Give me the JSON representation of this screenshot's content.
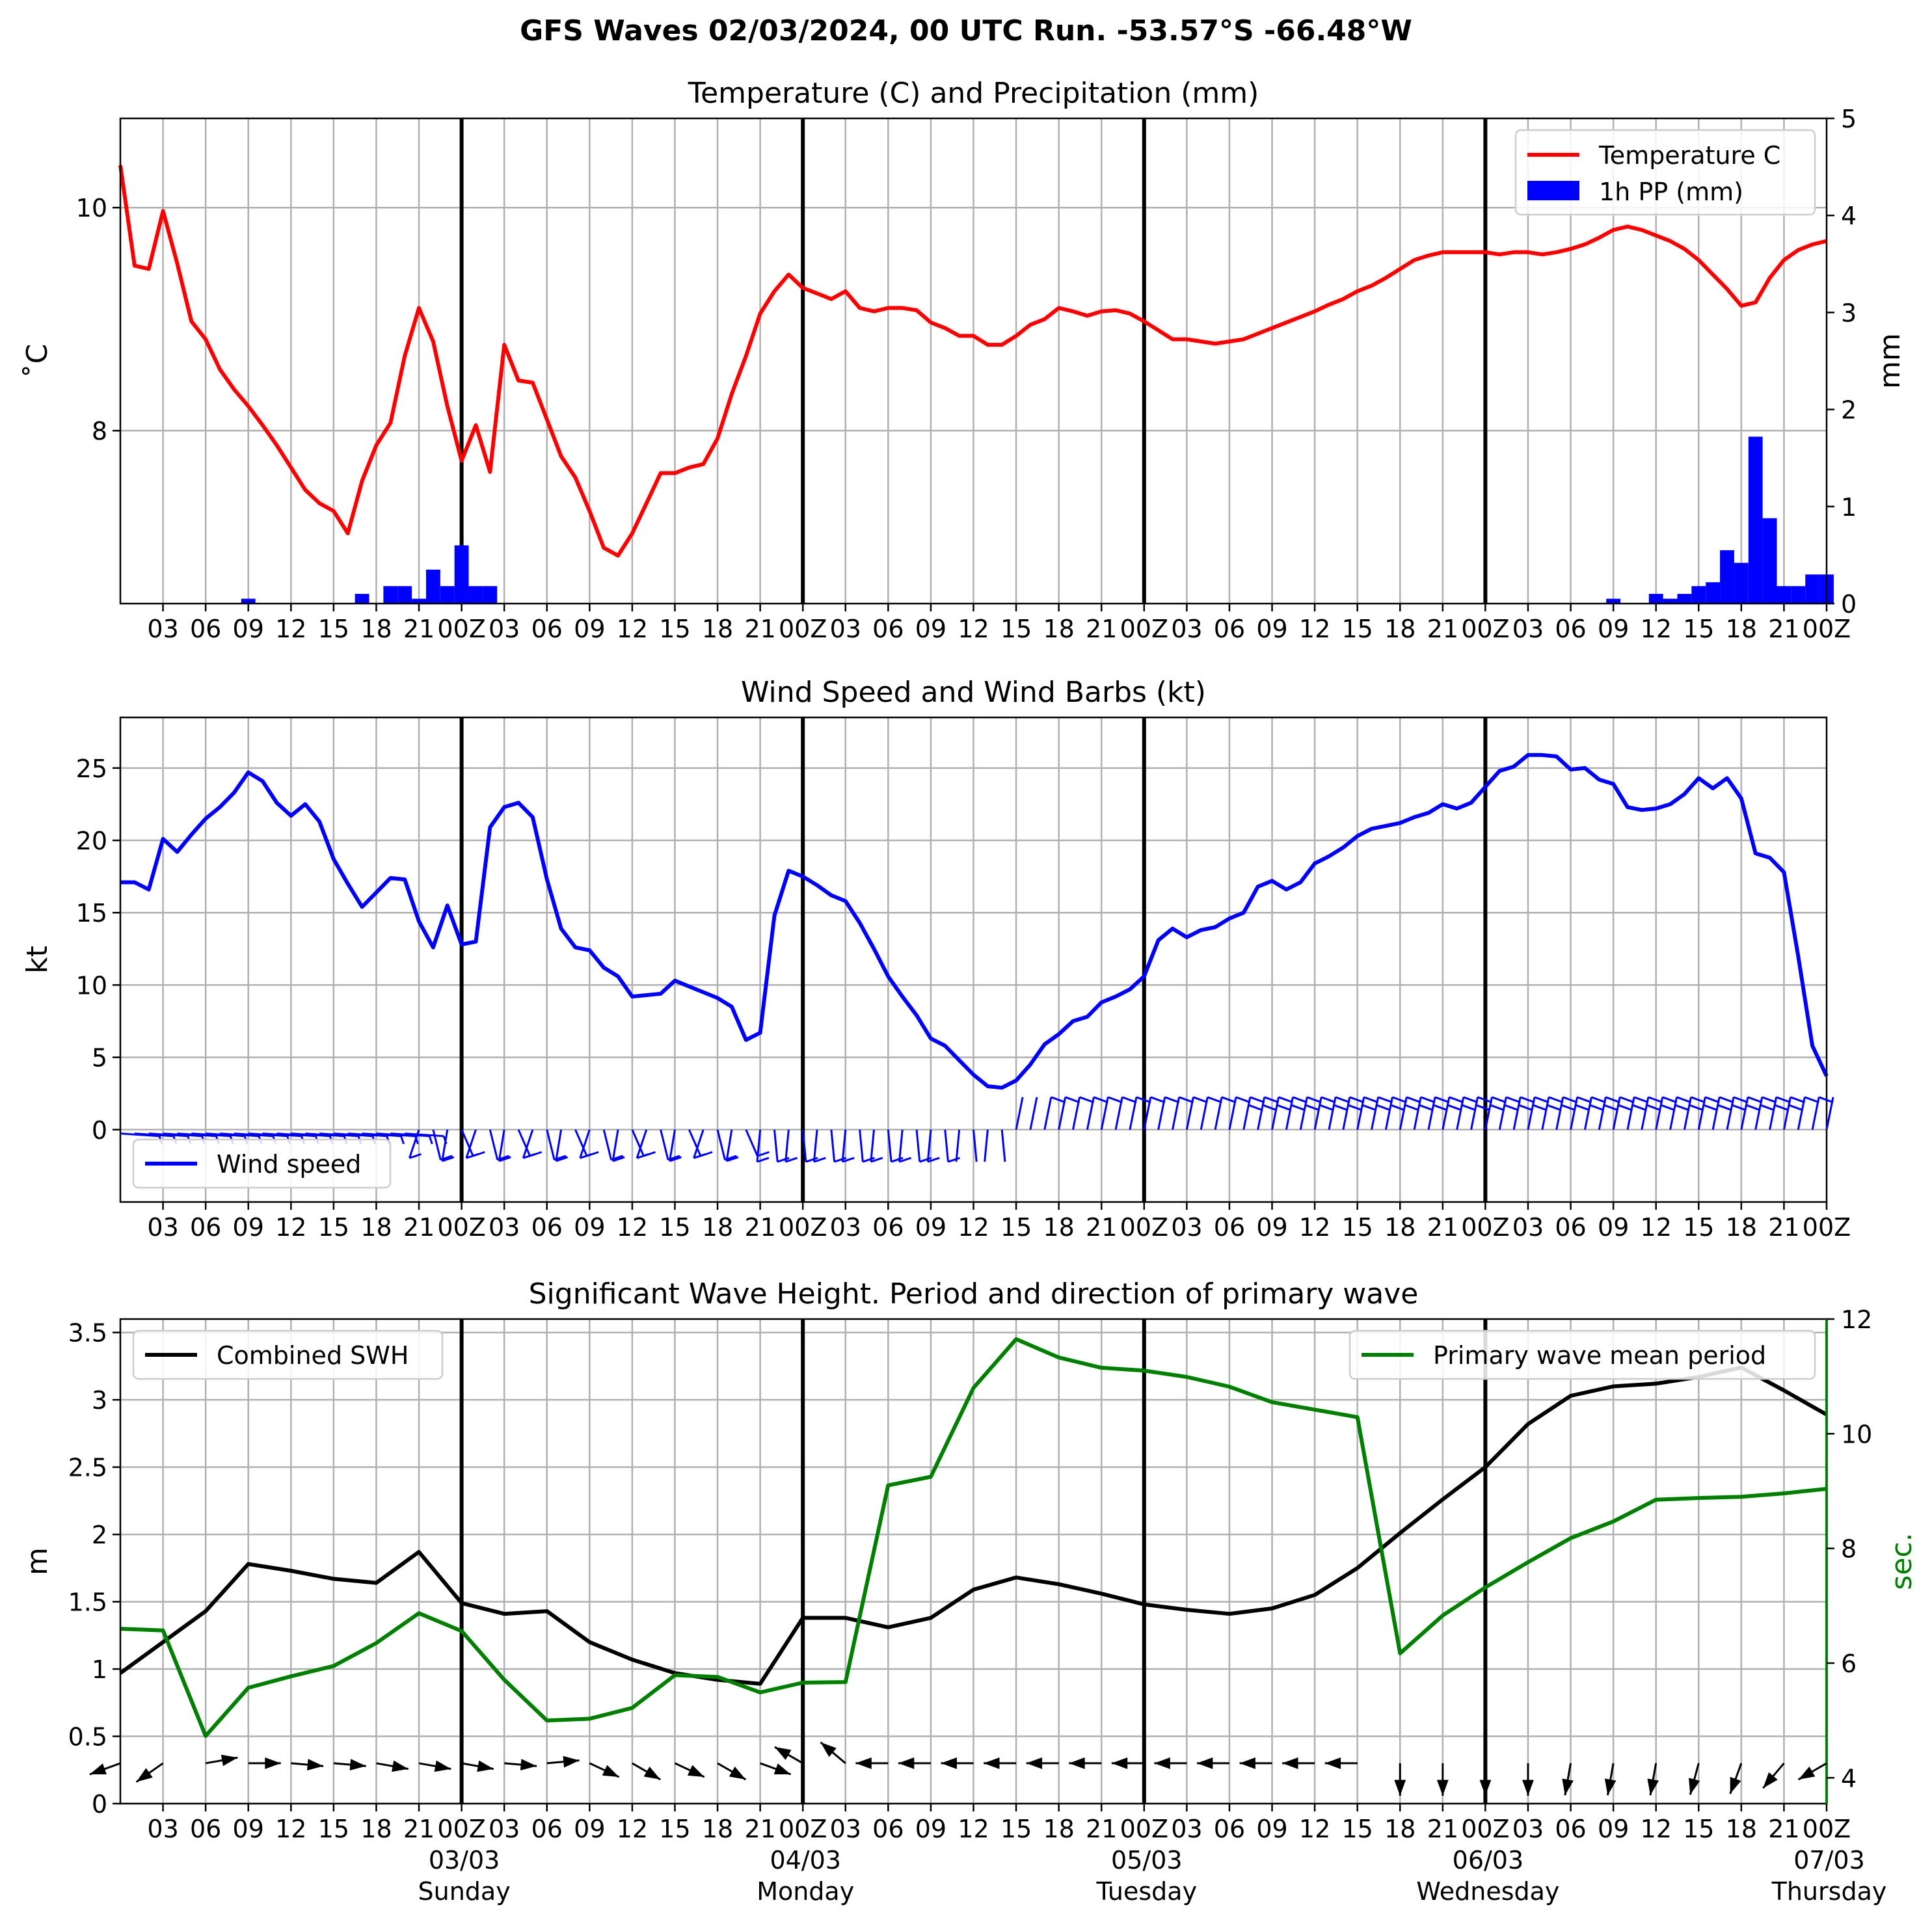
{
  "suptitle": "GFS Waves 02/03/2024, 00 UTC Run. -53.57°S -66.48°W",
  "time_ticks": [
    "03",
    "06",
    "09",
    "12",
    "15",
    "18",
    "21",
    "00Z",
    "03",
    "06",
    "09",
    "12",
    "15",
    "18",
    "21",
    "00Z",
    "03",
    "06",
    "09",
    "12",
    "15",
    "18",
    "21",
    "00Z",
    "03",
    "06",
    "09",
    "12",
    "15",
    "18",
    "21",
    "00Z",
    "03",
    "06",
    "09",
    "12",
    "15",
    "18",
    "21",
    "00Z"
  ],
  "date_labels": [
    {
      "hour": 24,
      "date": "03/03",
      "day": "Sunday"
    },
    {
      "hour": 48,
      "date": "04/03",
      "day": "Monday"
    },
    {
      "hour": 72,
      "date": "05/03",
      "day": "Tuesday"
    },
    {
      "hour": 96,
      "date": "06/03",
      "day": "Wednesday"
    },
    {
      "hour": 120,
      "date": "07/03",
      "day": "Thursday"
    }
  ],
  "chart_data": [
    {
      "type": "line",
      "title": "Temperature (C) and Precipitation (mm)",
      "ylabel": "$^\\circ$C",
      "ylabel_display": "˚C",
      "y2label": "mm",
      "xlim": [
        0,
        120
      ],
      "ylim": [
        6.45,
        10.8
      ],
      "y2lim": [
        0,
        5
      ],
      "yticks": [
        8,
        10
      ],
      "y2ticks": [
        0,
        1,
        2,
        3,
        4,
        5
      ],
      "legend": {
        "position": "top-right",
        "entries": [
          "Temperature C",
          "1h PP (mm)"
        ]
      },
      "series": [
        {
          "name": "Temperature C",
          "color": "#ff0000",
          "x_hours": [
            0,
            1,
            2,
            3,
            4,
            5,
            6,
            7,
            8,
            9,
            10,
            11,
            12,
            13,
            14,
            15,
            16,
            17,
            18,
            19,
            20,
            21,
            22,
            23,
            24,
            25,
            26,
            27,
            28,
            29,
            30,
            31,
            32,
            33,
            34,
            35,
            36,
            37,
            38,
            39,
            40,
            41,
            42,
            43,
            44,
            45,
            46,
            47,
            48,
            49,
            50,
            51,
            52,
            53,
            54,
            55,
            56,
            57,
            58,
            59,
            60,
            61,
            62,
            63,
            64,
            65,
            66,
            67,
            68,
            69,
            70,
            71,
            72,
            73,
            74,
            75,
            76,
            77,
            78,
            79,
            80,
            81,
            82,
            83,
            84,
            85,
            86,
            87,
            88,
            89,
            90,
            91,
            92,
            93,
            94,
            95,
            96,
            97,
            98,
            99,
            100,
            101,
            102,
            103,
            104,
            105,
            106,
            107,
            108,
            109,
            110,
            111,
            112,
            113,
            114,
            115,
            116,
            117,
            118,
            119,
            120
          ],
          "values": [
            10.38,
            9.48,
            9.45,
            9.97,
            9.5,
            8.98,
            8.82,
            8.55,
            8.37,
            8.22,
            8.05,
            7.87,
            7.67,
            7.47,
            7.35,
            7.28,
            7.08,
            7.55,
            7.87,
            8.07,
            8.67,
            9.1,
            8.8,
            8.22,
            7.73,
            8.05,
            7.63,
            8.77,
            8.45,
            8.43,
            8.1,
            7.77,
            7.58,
            7.28,
            6.95,
            6.88,
            7.08,
            7.35,
            7.62,
            7.62,
            7.67,
            7.7,
            7.93,
            8.33,
            8.67,
            9.05,
            9.25,
            9.4,
            9.28,
            9.23,
            9.18,
            9.25,
            9.1,
            9.07,
            9.1,
            9.1,
            9.08,
            8.97,
            8.92,
            8.85,
            8.85,
            8.77,
            8.77,
            8.85,
            8.95,
            9.0,
            9.1,
            9.07,
            9.03,
            9.07,
            9.08,
            9.05,
            8.98,
            8.9,
            8.82,
            8.82,
            8.8,
            8.78,
            8.8,
            8.82,
            8.87,
            8.92,
            8.97,
            9.02,
            9.07,
            9.13,
            9.18,
            9.25,
            9.3,
            9.37,
            9.45,
            9.53,
            9.57,
            9.6,
            9.6,
            9.6,
            9.6,
            9.58,
            9.6,
            9.6,
            9.58,
            9.6,
            9.63,
            9.67,
            9.73,
            9.8,
            9.83,
            9.8,
            9.75,
            9.7,
            9.63,
            9.53,
            9.4,
            9.27,
            9.12,
            9.15,
            9.37,
            9.53,
            9.62,
            9.67,
            9.7
          ]
        },
        {
          "name": "1h PP (mm)",
          "color": "#0000ff",
          "kind": "bar",
          "x_hours": [
            9,
            17,
            19,
            20,
            21,
            22,
            23,
            24,
            25,
            26,
            105,
            108,
            109,
            110,
            111,
            112,
            113,
            114,
            115,
            116,
            117,
            118,
            119,
            120
          ],
          "values": [
            0.05,
            0.1,
            0.18,
            0.18,
            0.05,
            0.35,
            0.18,
            0.6,
            0.18,
            0.18,
            0.05,
            0.1,
            0.05,
            0.1,
            0.18,
            0.22,
            0.55,
            0.42,
            1.72,
            0.88,
            0.18,
            0.18,
            0.3,
            0.3
          ]
        }
      ]
    },
    {
      "type": "line",
      "title": "Wind Speed and Wind Barbs (kt)",
      "ylabel": "kt",
      "xlim": [
        0,
        120
      ],
      "ylim": [
        -5,
        28.5
      ],
      "yticks": [
        0,
        5,
        10,
        15,
        20,
        25
      ],
      "legend": {
        "position": "bottom-left",
        "entries": [
          "Wind speed"
        ]
      },
      "series": [
        {
          "name": "Wind speed",
          "color": "#0000ff",
          "x_hours": [
            0,
            1,
            2,
            3,
            4,
            5,
            6,
            7,
            8,
            9,
            10,
            11,
            12,
            13,
            14,
            15,
            16,
            17,
            18,
            19,
            20,
            21,
            22,
            23,
            24,
            25,
            26,
            27,
            28,
            29,
            30,
            31,
            32,
            33,
            34,
            35,
            36,
            37,
            38,
            39,
            40,
            41,
            42,
            43,
            44,
            45,
            46,
            47,
            48,
            49,
            50,
            51,
            52,
            53,
            54,
            55,
            56,
            57,
            58,
            59,
            60,
            61,
            62,
            63,
            64,
            65,
            66,
            67,
            68,
            69,
            70,
            71,
            72,
            73,
            74,
            75,
            76,
            77,
            78,
            79,
            80,
            81,
            82,
            83,
            84,
            85,
            86,
            87,
            88,
            89,
            90,
            91,
            92,
            93,
            94,
            95,
            96,
            97,
            98,
            99,
            100,
            101,
            102,
            103,
            104,
            105,
            106,
            107,
            108,
            109,
            110,
            111,
            112,
            113,
            114,
            115,
            116,
            117,
            118,
            119,
            120
          ],
          "values": [
            17.1,
            17.1,
            16.6,
            20.1,
            19.2,
            20.4,
            21.5,
            22.3,
            23.3,
            24.7,
            24.1,
            22.6,
            21.7,
            22.5,
            21.3,
            18.7,
            17.0,
            15.4,
            16.4,
            17.4,
            17.3,
            14.4,
            12.6,
            15.5,
            12.8,
            13.0,
            20.9,
            22.3,
            22.6,
            21.6,
            17.3,
            13.9,
            12.6,
            12.4,
            11.2,
            10.6,
            9.2,
            9.3,
            9.4,
            10.3,
            9.9,
            9.5,
            9.1,
            8.5,
            6.2,
            6.7,
            14.8,
            17.9,
            17.5,
            16.9,
            16.2,
            15.8,
            14.3,
            12.5,
            10.6,
            9.2,
            7.9,
            6.3,
            5.8,
            4.8,
            3.8,
            3.0,
            2.9,
            3.4,
            4.5,
            5.9,
            6.6,
            7.5,
            7.8,
            8.8,
            9.2,
            9.7,
            10.6,
            13.1,
            13.9,
            13.3,
            13.8,
            14.0,
            14.6,
            15.0,
            16.8,
            17.2,
            16.6,
            17.1,
            18.4,
            18.9,
            19.5,
            20.3,
            20.8,
            21.0,
            21.2,
            21.6,
            21.9,
            22.5,
            22.2,
            22.6,
            23.7,
            24.8,
            25.1,
            25.9,
            25.9,
            25.8,
            24.9,
            25.0,
            24.2,
            23.9,
            22.3,
            22.1,
            22.2,
            22.5,
            23.2,
            24.3,
            23.6,
            24.3,
            22.9,
            19.1,
            18.8,
            17.8,
            12.0,
            5.8,
            3.7
          ]
        }
      ]
    },
    {
      "type": "line",
      "title": "Significant Wave Height. Period and direction of primary wave",
      "ylabel": "m",
      "y2label": "sec.",
      "xlim": [
        0,
        120
      ],
      "ylim": [
        0,
        3.6
      ],
      "y2lim": [
        3.55,
        12
      ],
      "yticks": [
        0.0,
        0.5,
        1.0,
        1.5,
        2.0,
        2.5,
        3.0,
        3.5
      ],
      "y2ticks": [
        4,
        6,
        8,
        10,
        12
      ],
      "legend": [
        {
          "position": "top-left",
          "entries": [
            "Combined SWH"
          ]
        },
        {
          "position": "top-right",
          "entries": [
            "Primary wave mean period"
          ]
        }
      ],
      "series": [
        {
          "name": "Combined SWH",
          "color": "#000000",
          "x_hours": [
            0,
            3,
            6,
            9,
            12,
            15,
            18,
            21,
            24,
            27,
            30,
            33,
            36,
            39,
            42,
            45,
            48,
            51,
            54,
            57,
            60,
            63,
            66,
            69,
            72,
            75,
            78,
            81,
            84,
            87,
            90,
            93,
            96,
            99,
            102,
            105,
            108,
            111,
            114,
            117,
            120
          ],
          "values": [
            0.97,
            1.2,
            1.43,
            1.78,
            1.73,
            1.67,
            1.64,
            1.87,
            1.49,
            1.41,
            1.43,
            1.2,
            1.07,
            0.97,
            0.92,
            0.89,
            1.38,
            1.38,
            1.31,
            1.38,
            1.59,
            1.68,
            1.63,
            1.56,
            1.48,
            1.44,
            1.41,
            1.45,
            1.55,
            1.75,
            2.01,
            2.26,
            2.5,
            2.82,
            3.03,
            3.1,
            3.12,
            3.17,
            3.24,
            3.07,
            2.89
          ]
        },
        {
          "name": "Primary wave mean period",
          "color": "#008000",
          "x_hours": [
            0,
            3,
            6,
            9,
            12,
            15,
            18,
            21,
            24,
            27,
            30,
            33,
            36,
            39,
            42,
            45,
            48,
            51,
            54,
            57,
            60,
            63,
            66,
            69,
            72,
            75,
            78,
            81,
            84,
            87,
            90,
            93,
            96,
            99,
            102,
            105,
            108,
            111,
            114,
            117,
            120
          ],
          "values": [
            6.6,
            6.57,
            4.73,
            5.57,
            5.77,
            5.95,
            6.35,
            6.87,
            6.56,
            5.71,
            5.0,
            5.03,
            5.22,
            5.79,
            5.76,
            5.49,
            5.66,
            5.67,
            9.1,
            9.25,
            10.8,
            11.65,
            11.33,
            11.15,
            11.1,
            10.99,
            10.82,
            10.55,
            10.42,
            10.29,
            6.17,
            6.83,
            7.32,
            7.76,
            8.18,
            8.47,
            8.85,
            8.88,
            8.9,
            8.96,
            9.04
          ]
        }
      ]
    }
  ]
}
